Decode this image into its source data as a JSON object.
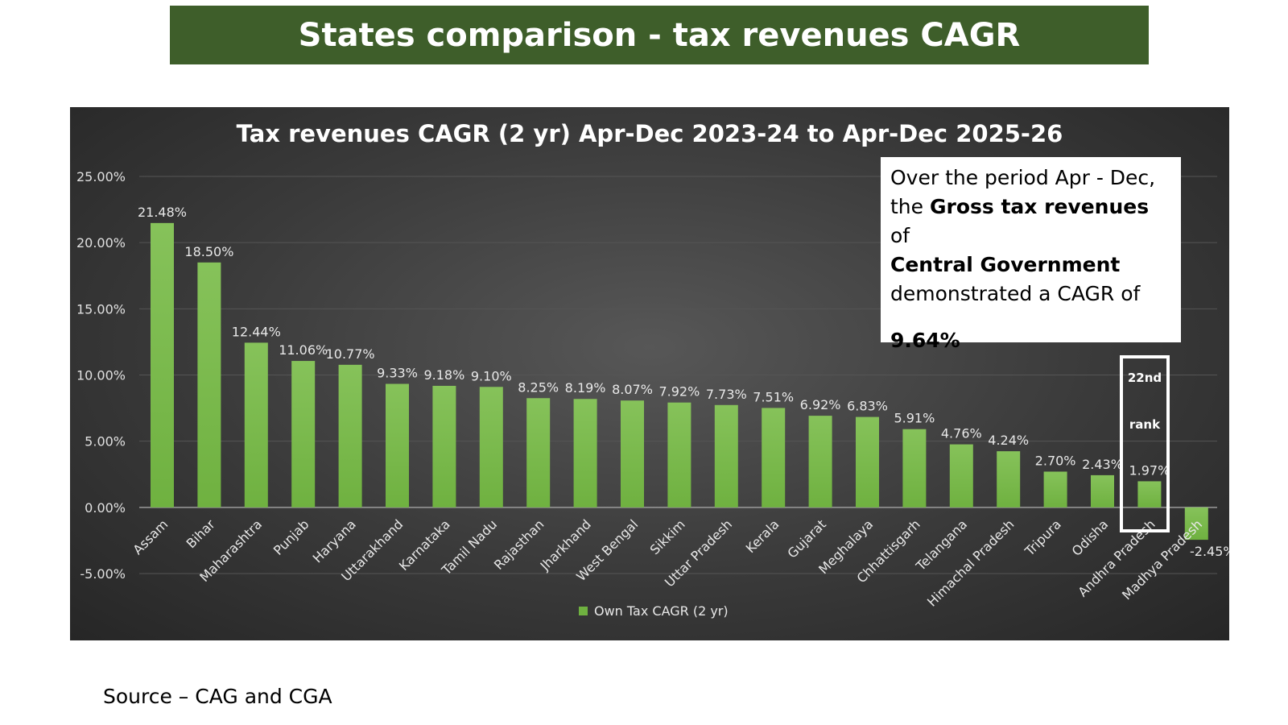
{
  "slide": {
    "title": "States comparison - tax revenues CAGR",
    "source": "Source – CAG and CGA"
  },
  "callout": {
    "line1": "Over the period Apr - Dec,",
    "line2_pre": "the ",
    "line2_bold": "Gross tax revenues",
    "line2_post": " of",
    "line3_bold": "Central Government",
    "line4": "demonstrated a CAGR of",
    "value": "9.64%"
  },
  "rank_box": {
    "line1": "22nd",
    "line2": "rank"
  },
  "colors": {
    "banner": "#3e5e2a",
    "bar": "#6fb140",
    "bar_light": "#86c25a",
    "panel": "#3a3a3a"
  },
  "chart_data": {
    "type": "bar",
    "title": "Tax revenues CAGR (2 yr) Apr-Dec 2023-24 to Apr-Dec 2025-26",
    "xlabel": "",
    "ylabel": "",
    "ylim": [
      -5,
      25
    ],
    "yticks": [
      -5,
      0,
      5,
      10,
      15,
      20,
      25
    ],
    "ytick_labels": [
      "-5.00%",
      "0.00%",
      "5.00%",
      "10.00%",
      "15.00%",
      "20.00%",
      "25.00%"
    ],
    "grid": true,
    "legend": "bottom-center",
    "categories": [
      "Assam",
      "Bihar",
      "Maharashtra",
      "Punjab",
      "Haryana",
      "Uttarakhand",
      "Karnataka",
      "Tamil Nadu",
      "Rajasthan",
      "Jharkhand",
      "West Bengal",
      "Sikkim",
      "Uttar Pradesh",
      "Kerala",
      "Gujarat",
      "Meghalaya",
      "Chhattisgarh",
      "Telangana",
      "Himachal Pradesh",
      "Tripura",
      "Odisha",
      "Andhra Pradesh",
      "Madhya Pradesh"
    ],
    "series": [
      {
        "name": "Own Tax CAGR (2 yr)",
        "values": [
          21.48,
          18.5,
          12.44,
          11.06,
          10.77,
          9.33,
          9.18,
          9.1,
          8.25,
          8.19,
          8.07,
          7.92,
          7.73,
          7.51,
          6.92,
          6.83,
          5.91,
          4.76,
          4.24,
          2.7,
          2.43,
          1.97,
          -2.45
        ],
        "labels": [
          "21.48%",
          "18.50%",
          "12.44%",
          "11.06%",
          "10.77%",
          "9.33%",
          "9.18%",
          "9.10%",
          "8.25%",
          "8.19%",
          "8.07%",
          "7.92%",
          "7.73%",
          "7.51%",
          "6.92%",
          "6.83%",
          "5.91%",
          "4.76%",
          "4.24%",
          "2.70%",
          "2.43%",
          "1.97%",
          "-2.45%"
        ]
      }
    ]
  }
}
